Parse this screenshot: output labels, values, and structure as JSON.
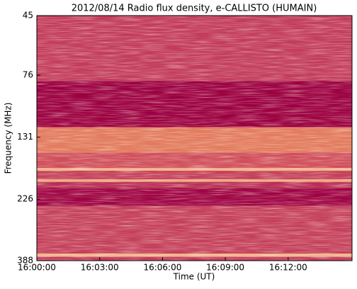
{
  "chart_data": {
    "type": "spectrogram",
    "title": "2012/08/14  Radio flux density, e-CALLISTO (HUMAIN)",
    "x_label": "Time (UT)",
    "y_label": "Frequency (MHz)",
    "xlim": [
      0,
      903
    ],
    "xticks": [
      {
        "value": 0,
        "label": "16:00:00"
      },
      {
        "value": 180,
        "label": "16:03:00"
      },
      {
        "value": 360,
        "label": "16:06:00"
      },
      {
        "value": 540,
        "label": "16:09:00"
      },
      {
        "value": 720,
        "label": "16:12:00"
      }
    ],
    "ylim": [
      45,
      388
    ],
    "yscale": "log",
    "yinverted": true,
    "yticks": [
      45,
      76,
      131,
      226,
      388
    ],
    "bands": [
      {
        "from": 45,
        "to": 80,
        "color": "#c23c5c"
      },
      {
        "from": 80,
        "to": 120,
        "color": "#9b0042"
      },
      {
        "from": 120,
        "to": 150,
        "color": "#e27a5e"
      },
      {
        "from": 150,
        "to": 172,
        "color": "#cf4e5c"
      },
      {
        "from": 172,
        "to": 176,
        "color": "#f3b488"
      },
      {
        "from": 176,
        "to": 190,
        "color": "#c4405a"
      },
      {
        "from": 190,
        "to": 194,
        "color": "#f0a87e"
      },
      {
        "from": 194,
        "to": 205,
        "color": "#b82e55"
      },
      {
        "from": 205,
        "to": 240,
        "color": "#9e0444"
      },
      {
        "from": 240,
        "to": 365,
        "color": "#c4405c"
      },
      {
        "from": 365,
        "to": 375,
        "color": "#f2b48a"
      },
      {
        "from": 375,
        "to": 388,
        "color": "#c0385a"
      }
    ]
  }
}
